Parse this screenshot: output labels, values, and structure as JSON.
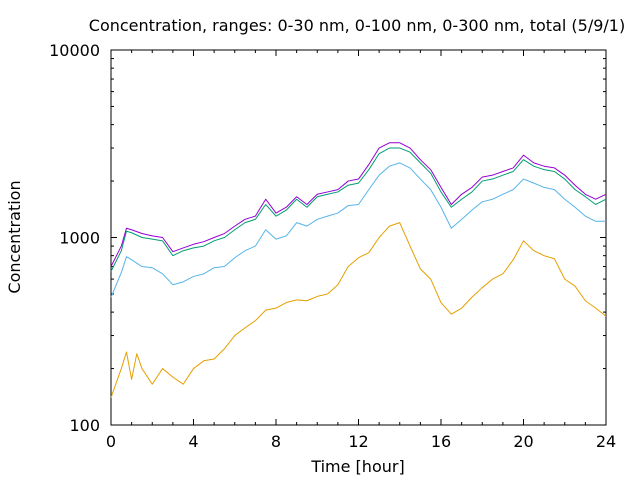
{
  "chart_data": {
    "type": "line",
    "title": "Concentration, ranges: 0-30 nm, 0-100 nm, 0-300 nm, total (5/9/1)",
    "xlabel": "Time [hour]",
    "ylabel": "Concentration",
    "xlim": [
      0,
      24
    ],
    "ylim": [
      100,
      10000
    ],
    "yscale": "log",
    "xticks": [
      0,
      4,
      8,
      12,
      16,
      20,
      24
    ],
    "xtick_labels": [
      "0",
      "4",
      "8",
      "12",
      "16",
      "20",
      "24"
    ],
    "yticks": [
      100,
      1000,
      10000
    ],
    "ytick_labels": [
      "100",
      "1000",
      "10000"
    ],
    "grid": false,
    "series": [
      {
        "color": "#e69f00",
        "x": [
          0,
          0.5,
          0.75,
          1.0,
          1.25,
          1.5,
          2.0,
          2.5,
          3.0,
          3.5,
          4.0,
          4.5,
          5.0,
          5.5,
          6.0,
          6.5,
          7.0,
          7.5,
          8.0,
          8.5,
          9.0,
          9.5,
          10.0,
          10.5,
          11.0,
          11.5,
          12.0,
          12.5,
          13.0,
          13.5,
          14.0,
          14.5,
          15.0,
          15.5,
          16.0,
          16.5,
          17.0,
          17.5,
          18.0,
          18.5,
          19.0,
          19.5,
          20.0,
          20.5,
          21.0,
          21.5,
          22.0,
          22.5,
          23.0,
          23.5,
          24.0
        ],
        "y": [
          140,
          200,
          245,
          175,
          240,
          200,
          165,
          200,
          180,
          165,
          200,
          220,
          225,
          255,
          300,
          330,
          360,
          410,
          420,
          450,
          465,
          460,
          485,
          500,
          560,
          700,
          780,
          830,
          1000,
          1150,
          1200,
          900,
          680,
          600,
          450,
          390,
          420,
          480,
          540,
          600,
          640,
          760,
          960,
          850,
          800,
          770,
          600,
          550,
          460,
          420,
          380
        ]
      },
      {
        "color": "#56b4e9",
        "x": [
          0,
          0.5,
          0.75,
          1.0,
          1.5,
          2.0,
          2.5,
          3.0,
          3.5,
          4.0,
          4.5,
          5.0,
          5.5,
          6.0,
          6.5,
          7.0,
          7.5,
          8.0,
          8.5,
          9.0,
          9.5,
          10.0,
          10.5,
          11.0,
          11.5,
          12.0,
          12.5,
          13.0,
          13.5,
          14.0,
          14.5,
          15.0,
          15.5,
          16.0,
          16.5,
          17.0,
          17.5,
          18.0,
          18.5,
          19.0,
          19.5,
          20.0,
          20.5,
          21.0,
          21.5,
          22.0,
          22.5,
          23.0,
          23.5,
          24.0
        ],
        "y": [
          480,
          650,
          790,
          760,
          700,
          690,
          640,
          560,
          580,
          620,
          640,
          690,
          700,
          780,
          850,
          900,
          1100,
          980,
          1020,
          1200,
          1150,
          1250,
          1300,
          1350,
          1480,
          1500,
          1800,
          2150,
          2400,
          2500,
          2350,
          2050,
          1800,
          1450,
          1120,
          1250,
          1400,
          1550,
          1600,
          1700,
          1800,
          2050,
          1950,
          1850,
          1800,
          1600,
          1450,
          1300,
          1220,
          1220
        ]
      },
      {
        "color": "#009e73",
        "x": [
          0,
          0.5,
          0.75,
          1.0,
          1.5,
          2.0,
          2.5,
          3.0,
          3.5,
          4.0,
          4.5,
          5.0,
          5.5,
          6.0,
          6.5,
          7.0,
          7.5,
          8.0,
          8.5,
          9.0,
          9.5,
          10.0,
          10.5,
          11.0,
          11.5,
          12.0,
          12.5,
          13.0,
          13.5,
          14.0,
          14.5,
          15.0,
          15.5,
          16.0,
          16.5,
          17.0,
          17.5,
          18.0,
          18.5,
          19.0,
          19.5,
          20.0,
          20.5,
          21.0,
          21.5,
          22.0,
          22.5,
          23.0,
          23.5,
          24.0
        ],
        "y": [
          660,
          850,
          1080,
          1060,
          1000,
          980,
          960,
          800,
          850,
          880,
          900,
          960,
          1000,
          1100,
          1200,
          1250,
          1500,
          1300,
          1400,
          1600,
          1450,
          1650,
          1700,
          1750,
          1900,
          1950,
          2300,
          2800,
          3000,
          3000,
          2850,
          2500,
          2200,
          1750,
          1450,
          1600,
          1750,
          2000,
          2050,
          2150,
          2250,
          2600,
          2400,
          2300,
          2250,
          2050,
          1800,
          1650,
          1500,
          1600
        ]
      },
      {
        "color": "#9400d3",
        "x": [
          0,
          0.5,
          0.75,
          1.0,
          1.5,
          2.0,
          2.5,
          3.0,
          3.5,
          4.0,
          4.5,
          5.0,
          5.5,
          6.0,
          6.5,
          7.0,
          7.5,
          8.0,
          8.5,
          9.0,
          9.5,
          10.0,
          10.5,
          11.0,
          11.5,
          12.0,
          12.5,
          13.0,
          13.5,
          14.0,
          14.5,
          15.0,
          15.5,
          16.0,
          16.5,
          17.0,
          17.5,
          18.0,
          18.5,
          19.0,
          19.5,
          20.0,
          20.5,
          21.0,
          21.5,
          22.0,
          22.5,
          23.0,
          23.5,
          24.0
        ],
        "y": [
          700,
          900,
          1120,
          1100,
          1050,
          1020,
          1000,
          840,
          880,
          920,
          950,
          1000,
          1050,
          1150,
          1250,
          1300,
          1600,
          1350,
          1450,
          1650,
          1500,
          1700,
          1750,
          1800,
          2000,
          2050,
          2450,
          3000,
          3200,
          3200,
          3000,
          2600,
          2300,
          1850,
          1500,
          1700,
          1850,
          2100,
          2150,
          2250,
          2350,
          2750,
          2500,
          2400,
          2350,
          2150,
          1900,
          1700,
          1600,
          1700
        ]
      }
    ]
  }
}
